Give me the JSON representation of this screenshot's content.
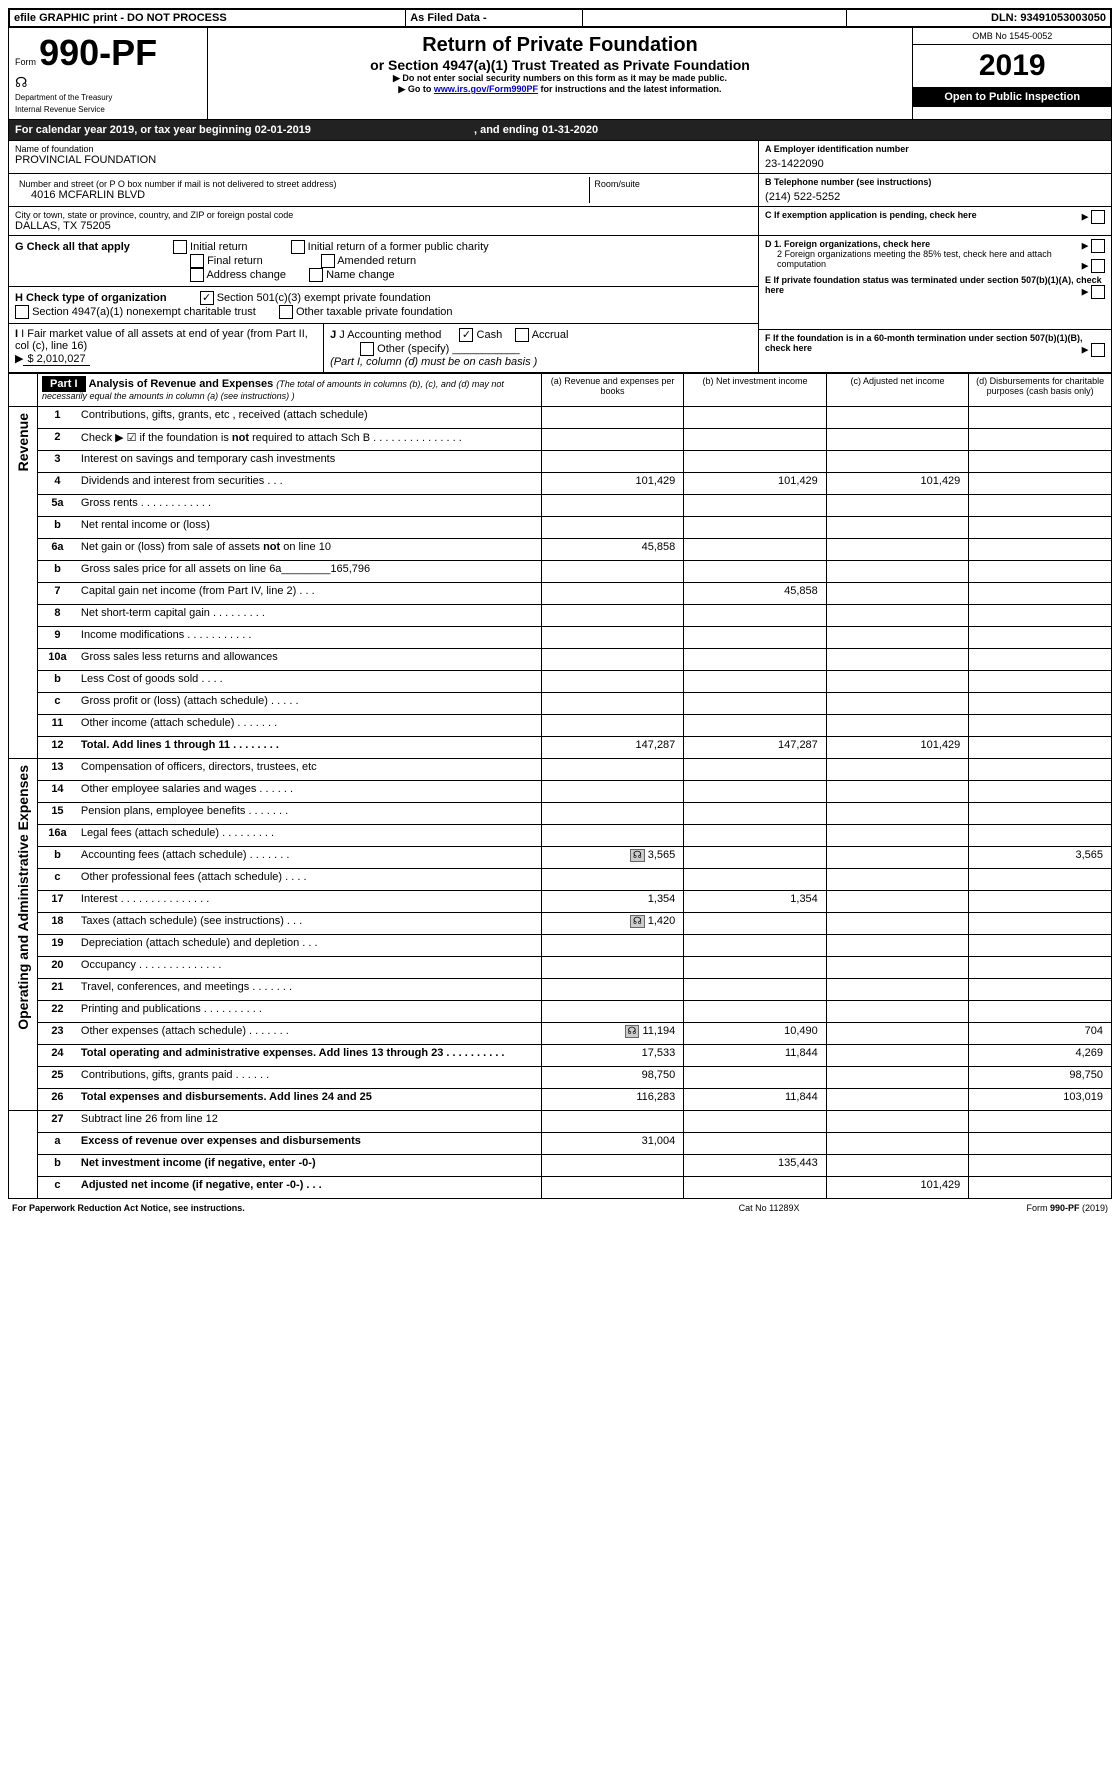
{
  "top_bar": {
    "efile": "efile GRAPHIC print - DO NOT PROCESS",
    "as_filed": "As Filed Data -",
    "dln_label": "DLN:",
    "dln": "93491053003050"
  },
  "header": {
    "form_prefix": "Form",
    "form_number": "990-PF",
    "dept1": "Department of the Treasury",
    "dept2": "Internal Revenue Service",
    "title": "Return of Private Foundation",
    "subtitle": "or Section 4947(a)(1) Trust Treated as Private Foundation",
    "instr1": "Do not enter social security numbers on this form as it may be made public.",
    "instr2_pre": "Go to ",
    "instr2_link": "www.irs.gov/Form990PF",
    "instr2_post": " for instructions and the latest information.",
    "omb": "OMB No 1545-0052",
    "year": "2019",
    "open": "Open to Public Inspection"
  },
  "cal_year": {
    "text": "For calendar year 2019, or tax year beginning 02-01-2019",
    "mid": ", and ending ",
    "end": "01-31-2020"
  },
  "ident": {
    "name_label": "Name of foundation",
    "name": "PROVINCIAL FOUNDATION",
    "addr_label": "Number and street (or P O  box number if mail is not delivered to street address)",
    "addr": "4016 MCFARLIN BLVD",
    "room_label": "Room/suite",
    "city_label": "City or town, state or province, country, and ZIP or foreign postal code",
    "city": "DALLAS, TX  75205",
    "a_label": "A Employer identification number",
    "a_val": "23-1422090",
    "b_label": "B Telephone number (see instructions)",
    "b_val": "(214) 522-5252",
    "c_label": "C If exemption application is pending, check here",
    "d1": "D 1. Foreign organizations, check here",
    "d2a": "2 Foreign organizations meeting the 85% test, check here and attach computation",
    "e_label": "E  If private foundation status was terminated under section 507(b)(1)(A), check here",
    "f_label": "F  If the foundation is in a 60-month termination under section 507(b)(1)(B), check here"
  },
  "g": {
    "label": "G Check all that apply",
    "opts": [
      "Initial return",
      "Initial return of a former public charity",
      "Final return",
      "Amended return",
      "Address change",
      "Name change"
    ]
  },
  "h": {
    "label": "H Check type of organization",
    "opt1": "Section 501(c)(3) exempt private foundation",
    "opt2": "Section 4947(a)(1) nonexempt charitable trust",
    "opt3": "Other taxable private foundation"
  },
  "i": {
    "label": "I Fair market value of all assets at end of year (from Part II, col  (c), line 16)",
    "val": "$  2,010,027"
  },
  "j": {
    "label": "J Accounting method",
    "cash": "Cash",
    "accrual": "Accrual",
    "other": "Other (specify)",
    "note": "(Part I, column (d) must be on cash basis )"
  },
  "part1": {
    "title": "Part I",
    "heading": "Analysis of Revenue and Expenses",
    "heading_note": "(The total of amounts in columns (b), (c), and (d) may not necessarily equal the amounts in column (a) (see instructions) )",
    "col_a": "(a)    Revenue and expenses per books",
    "col_b": "(b)  Net investment income",
    "col_c": "(c)  Adjusted net income",
    "col_d": "(d)  Disbursements for charitable purposes (cash basis only)",
    "revenue_label": "Revenue",
    "expenses_label": "Operating and Administrative Expenses",
    "rows": [
      {
        "n": "1",
        "t": "Contributions, gifts, grants, etc , received (attach schedule)",
        "a": "",
        "b": "",
        "c": "",
        "d": ""
      },
      {
        "n": "2",
        "t": "Check ▶ ☑ if the foundation is not required to attach Sch B       .   .   .   .   .   .   .   .   .   .   .   .   .   .   .",
        "a": "",
        "b": "",
        "c": "",
        "d": ""
      },
      {
        "n": "3",
        "t": "Interest on savings and temporary cash investments",
        "a": "",
        "b": "",
        "c": "",
        "d": ""
      },
      {
        "n": "4",
        "t": "Dividends and interest from securities    .  .  .",
        "a": "101,429",
        "b": "101,429",
        "c": "101,429",
        "d": ""
      },
      {
        "n": "5a",
        "t": "Gross rents       .   .   .   .   .   .   .   .   .   .   .   .",
        "a": "",
        "b": "",
        "c": "",
        "d": ""
      },
      {
        "n": "b",
        "t": "Net rental income or (loss)",
        "a": "",
        "b": "",
        "c": "",
        "d": ""
      },
      {
        "n": "6a",
        "t": "Net gain or (loss) from sale of assets not on line 10",
        "a": "45,858",
        "b": "",
        "c": "",
        "d": ""
      },
      {
        "n": "b",
        "t": "Gross sales price for all assets on line 6a________165,796",
        "a": "",
        "b": "",
        "c": "",
        "d": ""
      },
      {
        "n": "7",
        "t": "Capital gain net income (from Part IV, line 2)   .   .   .",
        "a": "",
        "b": "45,858",
        "c": "",
        "d": ""
      },
      {
        "n": "8",
        "t": "Net short-term capital gain  .  .  .  .  .  .  .  .  .",
        "a": "",
        "b": "",
        "c": "",
        "d": ""
      },
      {
        "n": "9",
        "t": "Income modifications .  .  .  .  .  .  .  .  .  .  .",
        "a": "",
        "b": "",
        "c": "",
        "d": ""
      },
      {
        "n": "10a",
        "t": "Gross sales less returns and allowances",
        "a": "",
        "b": "",
        "c": "",
        "d": ""
      },
      {
        "n": "b",
        "t": "Less  Cost of goods sold    .   .   .   .",
        "a": "",
        "b": "",
        "c": "",
        "d": ""
      },
      {
        "n": "c",
        "t": "Gross profit or (loss) (attach schedule)    .   .   .   .   .",
        "a": "",
        "b": "",
        "c": "",
        "d": ""
      },
      {
        "n": "11",
        "t": "Other income (attach schedule)    .  .  .  .  .  .  .",
        "a": "",
        "b": "",
        "c": "",
        "d": ""
      },
      {
        "n": "12",
        "t": "Total. Add lines 1 through 11   .  .  .  .  .  .  .  .",
        "bold": true,
        "a": "147,287",
        "b": "147,287",
        "c": "101,429",
        "d": ""
      }
    ],
    "exp_rows": [
      {
        "n": "13",
        "t": "Compensation of officers, directors, trustees, etc",
        "a": "",
        "b": "",
        "c": "",
        "d": ""
      },
      {
        "n": "14",
        "t": "Other employee salaries and wages    .   .   .   .   .   .",
        "a": "",
        "b": "",
        "c": "",
        "d": ""
      },
      {
        "n": "15",
        "t": "Pension plans, employee benefits  .  .  .  .  .  .  .",
        "a": "",
        "b": "",
        "c": "",
        "d": ""
      },
      {
        "n": "16a",
        "t": "Legal fees (attach schedule) .  .  .  .  .  .  .  .  .",
        "a": "",
        "b": "",
        "c": "",
        "d": ""
      },
      {
        "n": "b",
        "t": "Accounting fees (attach schedule) .  .  .  .  .  .  .",
        "icon": true,
        "a": "3,565",
        "b": "",
        "c": "",
        "d": "3,565"
      },
      {
        "n": "c",
        "t": "Other professional fees (attach schedule)    .   .   .   .",
        "a": "",
        "b": "",
        "c": "",
        "d": ""
      },
      {
        "n": "17",
        "t": "Interest  .  .  .  .  .  .  .  .  .  .  .  .  .  .  .",
        "a": "1,354",
        "b": "1,354",
        "c": "",
        "d": ""
      },
      {
        "n": "18",
        "t": "Taxes (attach schedule) (see instructions)      .   .   .",
        "icon": true,
        "a": "1,420",
        "b": "",
        "c": "",
        "d": ""
      },
      {
        "n": "19",
        "t": "Depreciation (attach schedule) and depletion    .   .   .",
        "a": "",
        "b": "",
        "c": "",
        "d": ""
      },
      {
        "n": "20",
        "t": "Occupancy   .  .  .  .  .  .  .  .  .  .  .  .  .  .",
        "a": "",
        "b": "",
        "c": "",
        "d": ""
      },
      {
        "n": "21",
        "t": "Travel, conferences, and meetings .  .  .  .  .  .  .",
        "a": "",
        "b": "",
        "c": "",
        "d": ""
      },
      {
        "n": "22",
        "t": "Printing and publications .  .  .  .  .  .  .  .  .  .",
        "a": "",
        "b": "",
        "c": "",
        "d": ""
      },
      {
        "n": "23",
        "t": "Other expenses (attach schedule) .  .  .  .  .  .  .",
        "icon": true,
        "a": "11,194",
        "b": "10,490",
        "c": "",
        "d": "704"
      },
      {
        "n": "24",
        "t": "Total operating and administrative expenses. Add lines 13 through 23   .  .  .  .  .  .  .  .  .  .",
        "bold": true,
        "a": "17,533",
        "b": "11,844",
        "c": "",
        "d": "4,269"
      },
      {
        "n": "25",
        "t": "Contributions, gifts, grants paid       .   .   .   .   .   .",
        "a": "98,750",
        "b": "",
        "c": "",
        "d": "98,750"
      },
      {
        "n": "26",
        "t": "Total expenses and disbursements. Add lines 24 and 25",
        "bold": true,
        "a": "116,283",
        "b": "11,844",
        "c": "",
        "d": "103,019"
      }
    ],
    "final_rows": [
      {
        "n": "27",
        "t": "Subtract line 26 from line 12",
        "a": "",
        "b": "",
        "c": "",
        "d": ""
      },
      {
        "n": "a",
        "t": "Excess of revenue over expenses and disbursements",
        "bold": true,
        "a": "31,004",
        "b": "",
        "c": "",
        "d": ""
      },
      {
        "n": "b",
        "t": "Net investment income (if negative, enter -0-)",
        "bold": true,
        "a": "",
        "b": "135,443",
        "c": "",
        "d": ""
      },
      {
        "n": "c",
        "t": "Adjusted net income (if negative, enter -0-)   .   .   .",
        "bold": true,
        "a": "",
        "b": "",
        "c": "101,429",
        "d": ""
      }
    ]
  },
  "footer": {
    "left": "For Paperwork Reduction Act Notice, see instructions.",
    "mid": "Cat  No  11289X",
    "right": "Form 990-PF (2019)"
  },
  "colors": {
    "black": "#000000",
    "white": "#ffffff",
    "link": "#0000cc"
  }
}
